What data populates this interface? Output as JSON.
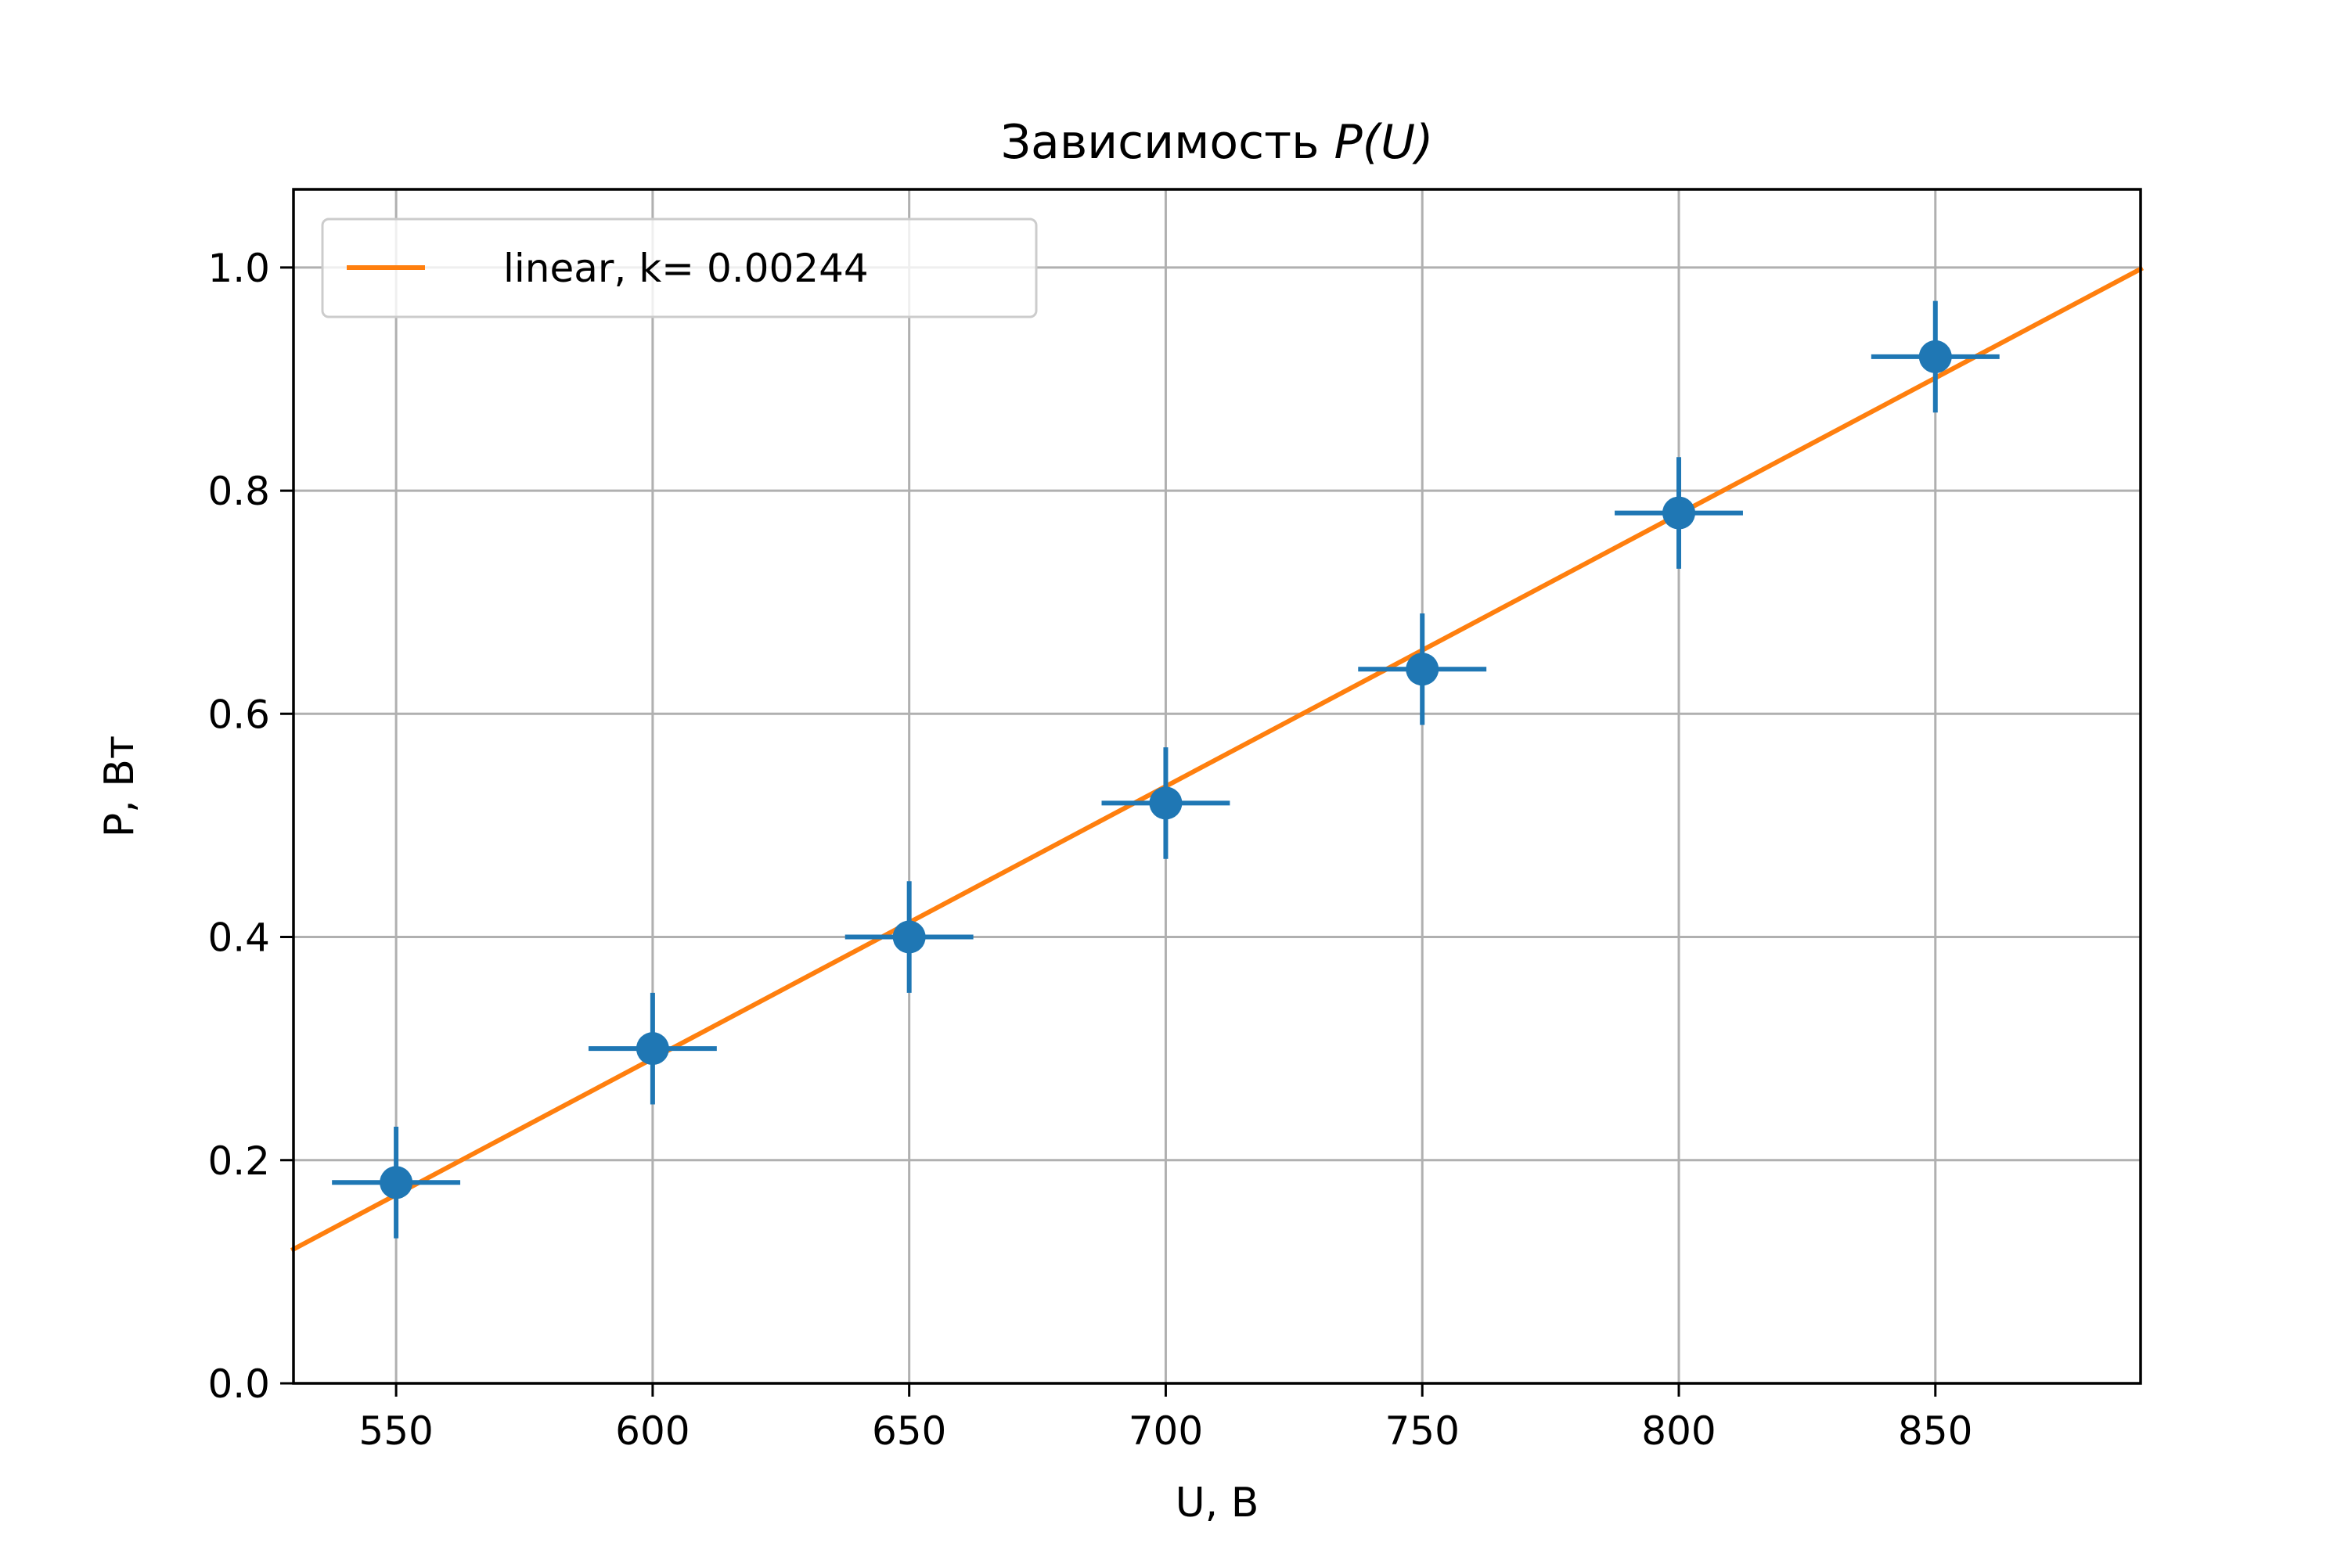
{
  "chart_data": {
    "type": "scatter",
    "title_prefix": "Зависимость ",
    "title_math": "P(U)",
    "xlabel": "U, В",
    "ylabel": "P, Вт",
    "xlim": [
      530,
      890
    ],
    "ylim": [
      0.0,
      1.07
    ],
    "xticks": [
      550,
      600,
      650,
      700,
      750,
      800,
      850
    ],
    "xtick_labels": [
      "550",
      "600",
      "650",
      "700",
      "750",
      "800",
      "850"
    ],
    "yticks": [
      0.0,
      0.2,
      0.4,
      0.6,
      0.8,
      1.0
    ],
    "ytick_labels": [
      "0.0",
      "0.2",
      "0.4",
      "0.6",
      "0.8",
      "1.0"
    ],
    "grid": true,
    "legend_position": "top-left",
    "series": [
      {
        "kind": "errorbar",
        "color": "#1f77b4",
        "x": [
          550,
          600,
          650,
          700,
          750,
          800,
          850
        ],
        "y": [
          0.18,
          0.3,
          0.4,
          0.52,
          0.64,
          0.78,
          0.92
        ],
        "xerr": 12.5,
        "yerr": 0.05
      },
      {
        "kind": "line",
        "name": "linear, k= 0.00244",
        "color": "#ff7f0e",
        "slope": 0.00244,
        "intercept": -1.173,
        "x_range": [
          530,
          890
        ]
      }
    ]
  }
}
